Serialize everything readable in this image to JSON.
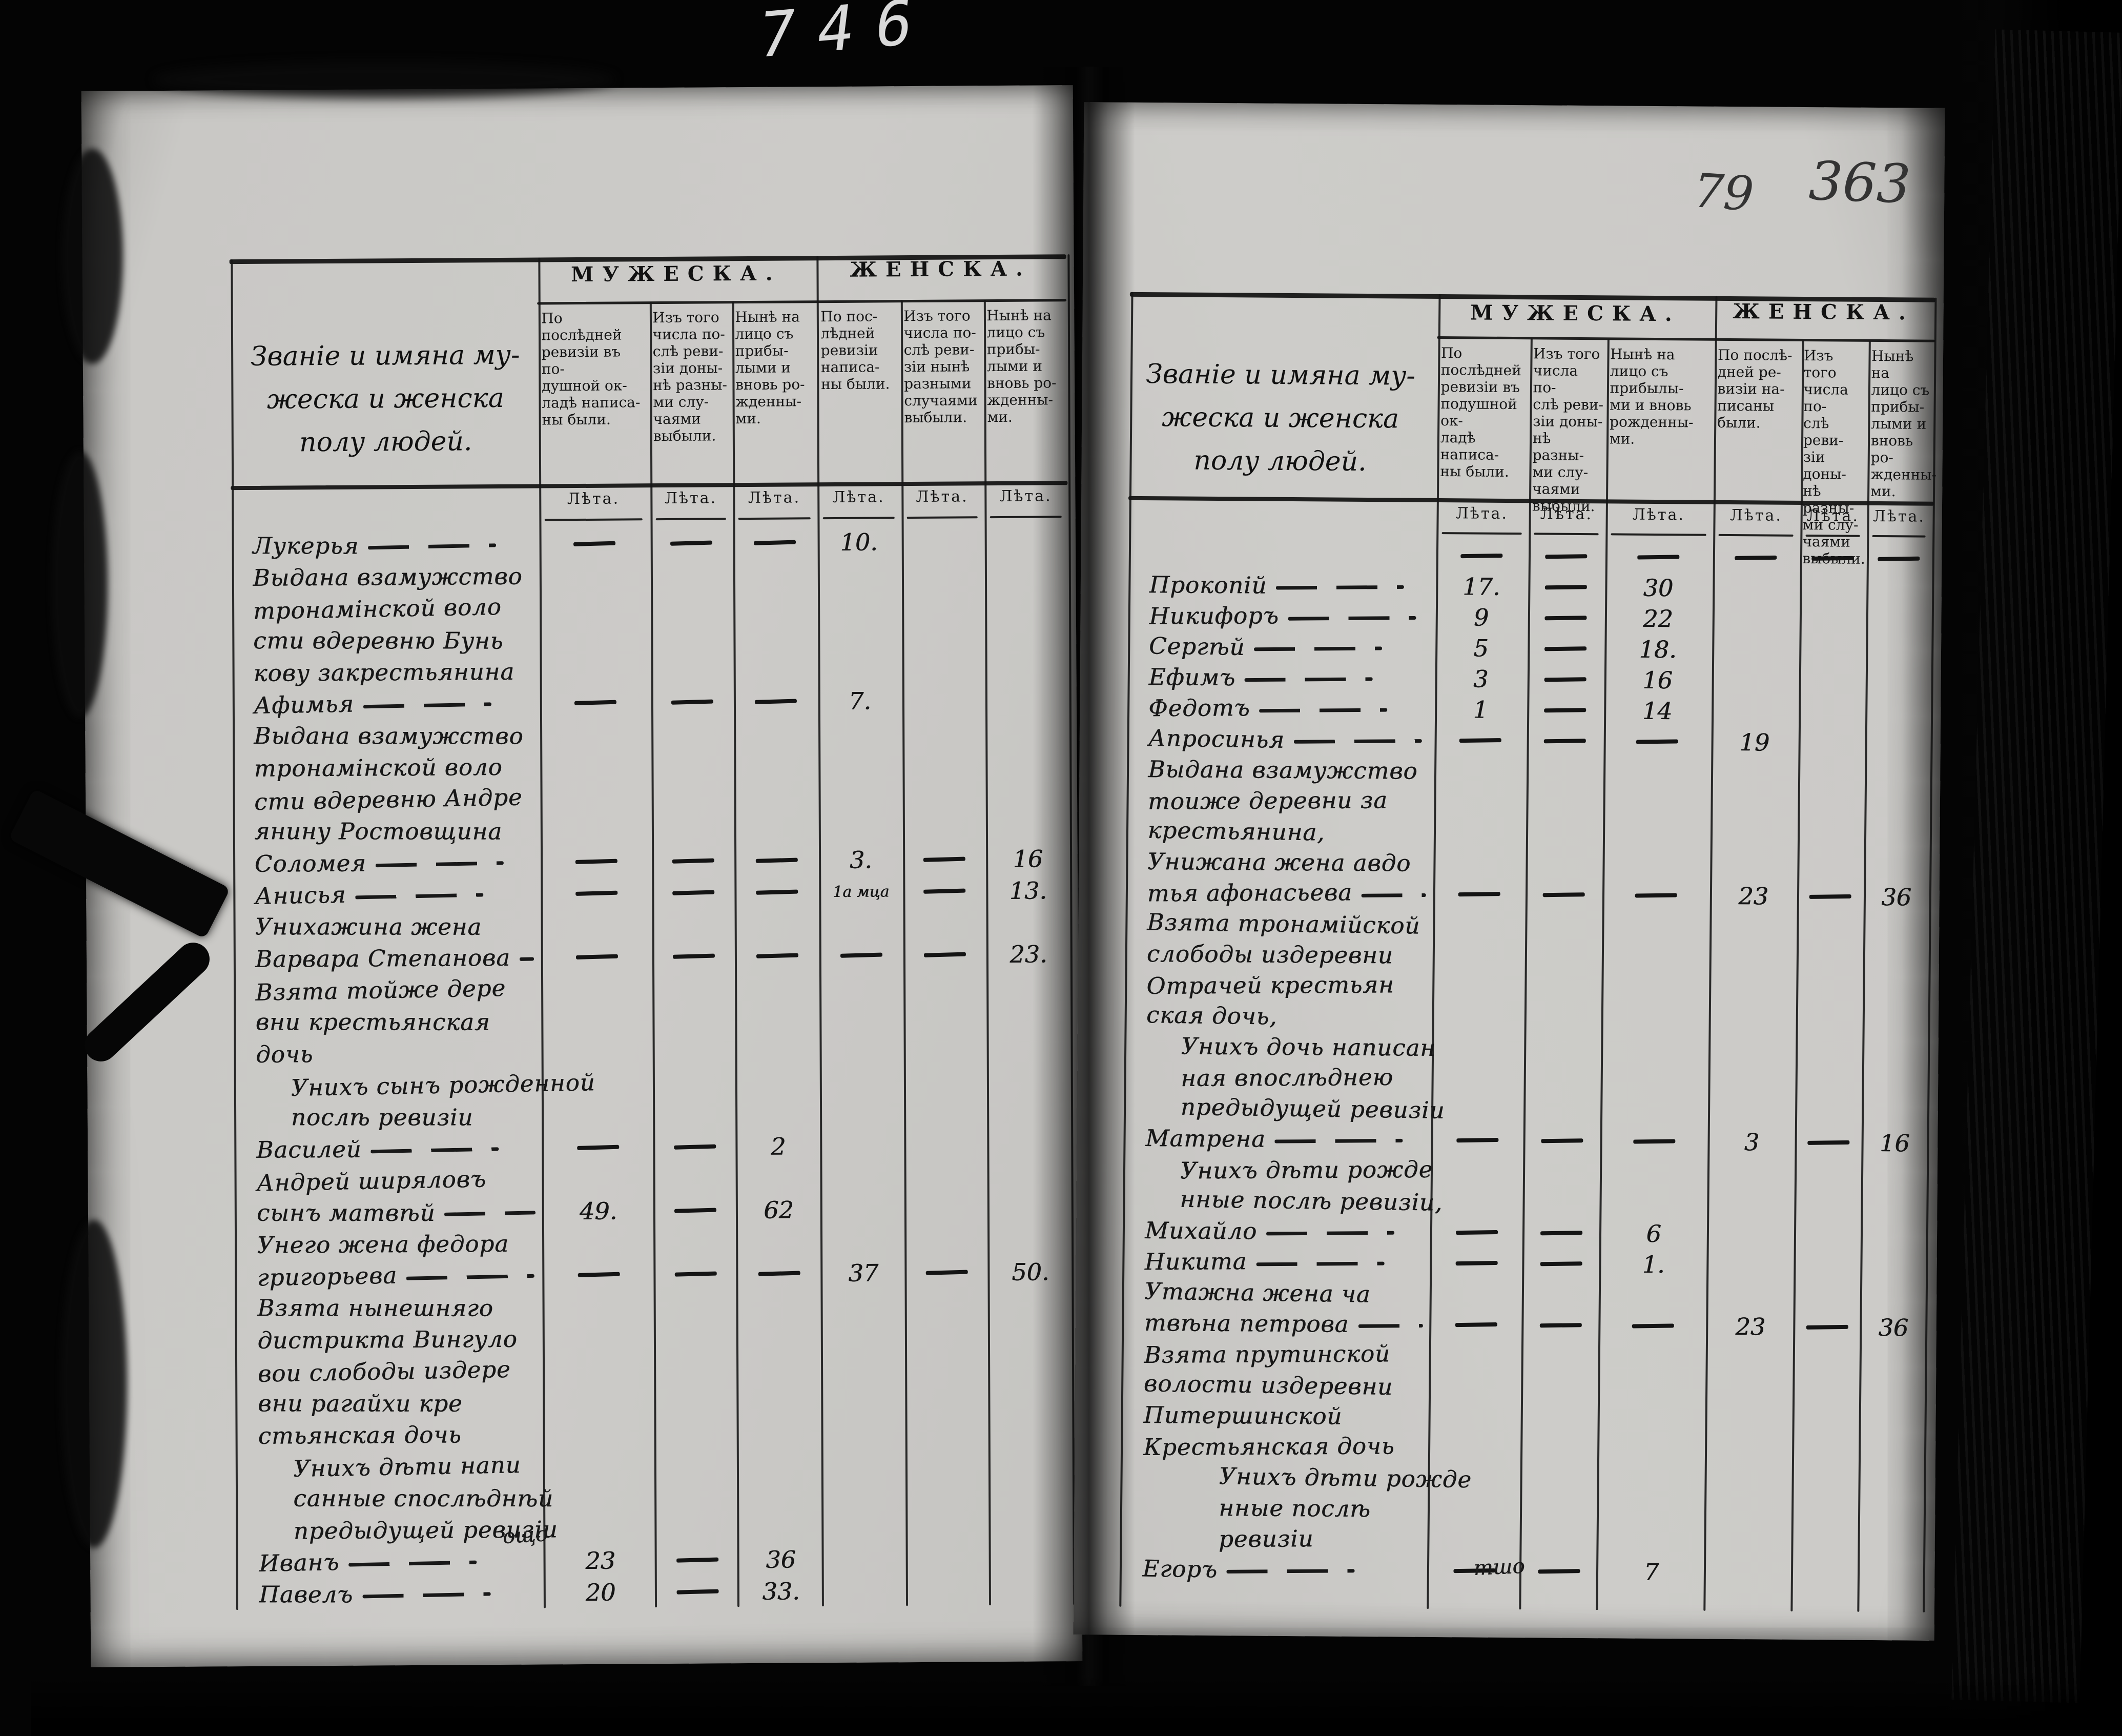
{
  "film_frame": "746",
  "folio": {
    "left_number": "79",
    "right_number": "363"
  },
  "catchwords": {
    "left": "ощо",
    "right": "тшо"
  },
  "left_page": {
    "name_header": [
      "Званіе и имяна му-",
      "жеска и женска",
      "полу  людей."
    ],
    "group_headers": {
      "male": "МУЖЕСКА.",
      "female": "ЖЕНСКА."
    },
    "age_label": "Лѣта.",
    "column_headers": {
      "m1": [
        "По послѣдней",
        "ревизіи въ по-",
        "душной ок-",
        "ладѣ написа-",
        "ны были."
      ],
      "m2": [
        "Изъ того",
        "числа по-",
        "слѣ реви-",
        "зіи доны-",
        "нѣ разны-",
        "ми слу-",
        "чаями",
        "выбыли."
      ],
      "m3": [
        "Нынѣ на",
        "лицо съ",
        "прибы-",
        "лыми и",
        "вновь ро-",
        "жденны-",
        "ми."
      ],
      "f1": [
        "По пос-",
        "лѣдней",
        "ревизіи",
        "написа-",
        "ны были."
      ],
      "f2": [
        "Изъ того",
        "числа по-",
        "слѣ реви-",
        "зіи нынѣ",
        "разными",
        "случаями",
        "выбыли."
      ],
      "f3": [
        "Нынѣ на",
        "лицо съ",
        "прибы-",
        "лыми и",
        "вновь ро-",
        "жденны-",
        "ми."
      ]
    },
    "rows": [
      {
        "text": "Лукерья",
        "type": "entry",
        "dashes": true,
        "cols": [
          "—",
          "—",
          "—",
          "10.",
          "",
          ""
        ]
      },
      {
        "text": "Выдана взамужство",
        "type": "note",
        "cols": [
          "",
          "",
          "",
          "",
          "",
          ""
        ]
      },
      {
        "text": "тронамінской воло",
        "type": "note",
        "cols": [
          "",
          "",
          "",
          "",
          "",
          ""
        ]
      },
      {
        "text": "сти вдеревню Бунь",
        "type": "note",
        "cols": [
          "",
          "",
          "",
          "",
          "",
          ""
        ]
      },
      {
        "text": "кову закрестьянина",
        "type": "note",
        "cols": [
          "",
          "",
          "",
          "",
          "",
          ""
        ]
      },
      {
        "text": "Афимья",
        "type": "entry",
        "dashes": true,
        "cols": [
          "—",
          "—",
          "—",
          "7.",
          "",
          ""
        ]
      },
      {
        "text": "Выдана взамужство",
        "type": "note",
        "cols": [
          "",
          "",
          "",
          "",
          "",
          ""
        ]
      },
      {
        "text": "тронамінской воло",
        "type": "note",
        "cols": [
          "",
          "",
          "",
          "",
          "",
          ""
        ]
      },
      {
        "text": "сти вдеревню Андре",
        "type": "note",
        "cols": [
          "",
          "",
          "",
          "",
          "",
          ""
        ]
      },
      {
        "text": "янину Ростовщина",
        "type": "note",
        "cols": [
          "",
          "",
          "",
          "",
          "",
          ""
        ]
      },
      {
        "text": "Соломея",
        "type": "entry",
        "dashes": true,
        "cols": [
          "—",
          "—",
          "—",
          "3.",
          "—",
          "16"
        ]
      },
      {
        "text": "Анисья",
        "type": "entry",
        "dashes": true,
        "cols": [
          "—",
          "—",
          "—",
          "1а мца",
          "—",
          "13."
        ]
      },
      {
        "text": "Унихажина жена",
        "type": "note",
        "cols": [
          "",
          "",
          "",
          "",
          "",
          ""
        ]
      },
      {
        "text": "Варвара Степанова",
        "type": "entry",
        "dashes": true,
        "cols": [
          "—",
          "—",
          "—",
          "—",
          "—",
          "23."
        ]
      },
      {
        "text": "Взята тойже дере",
        "type": "note",
        "cols": [
          "",
          "",
          "",
          "",
          "",
          ""
        ]
      },
      {
        "text": "вни крестьянская",
        "type": "note",
        "cols": [
          "",
          "",
          "",
          "",
          "",
          ""
        ]
      },
      {
        "text": "дочь",
        "type": "note",
        "cols": [
          "",
          "",
          "",
          "",
          "",
          ""
        ]
      },
      {
        "text": "Унихъ сынъ рожденной",
        "type": "note",
        "ind": 1,
        "cols": [
          "",
          "",
          "",
          "",
          "",
          ""
        ]
      },
      {
        "text": "послѣ ревизіи",
        "type": "note",
        "ind": 1,
        "cols": [
          "",
          "",
          "",
          "",
          "",
          ""
        ]
      },
      {
        "text": "Василей",
        "type": "entry",
        "dashes": true,
        "cols": [
          "—",
          "—",
          "2",
          "",
          "",
          ""
        ]
      },
      {
        "text": "Андрей ширяловъ",
        "type": "note",
        "cols": [
          "",
          "",
          "",
          "",
          "",
          ""
        ]
      },
      {
        "text": "сынъ матвѣй",
        "type": "entry",
        "dashes": true,
        "cols": [
          "49.",
          "—",
          "62",
          "",
          "",
          ""
        ]
      },
      {
        "text": "Унего жена федора",
        "type": "note",
        "cols": [
          "",
          "",
          "",
          "",
          "",
          ""
        ]
      },
      {
        "text": "григорьева",
        "type": "entry",
        "dashes": true,
        "cols": [
          "—",
          "—",
          "—",
          "37",
          "—",
          "50."
        ]
      },
      {
        "text": "Взята нынешняго",
        "type": "note",
        "cols": [
          "",
          "",
          "",
          "",
          "",
          ""
        ]
      },
      {
        "text": "дистрикта Вингуло",
        "type": "note",
        "cols": [
          "",
          "",
          "",
          "",
          "",
          ""
        ]
      },
      {
        "text": "вои слободы издере",
        "type": "note",
        "cols": [
          "",
          "",
          "",
          "",
          "",
          ""
        ]
      },
      {
        "text": "вни рагайхи кре",
        "type": "note",
        "cols": [
          "",
          "",
          "",
          "",
          "",
          ""
        ]
      },
      {
        "text": "стьянская дочь",
        "type": "note",
        "cols": [
          "",
          "",
          "",
          "",
          "",
          ""
        ]
      },
      {
        "text": "Унихъ дѣти напи",
        "type": "note",
        "ind": 1,
        "cols": [
          "",
          "",
          "",
          "",
          "",
          ""
        ]
      },
      {
        "text": "санные спослѣднѣй",
        "type": "note",
        "ind": 1,
        "cols": [
          "",
          "",
          "",
          "",
          "",
          ""
        ]
      },
      {
        "text": "предыдущей ревизіи",
        "type": "note",
        "ind": 1,
        "cols": [
          "",
          "",
          "",
          "",
          "",
          ""
        ]
      },
      {
        "text": "Иванъ",
        "type": "entry",
        "dashes": true,
        "cols": [
          "23",
          "—",
          "36",
          "",
          "",
          ""
        ]
      },
      {
        "text": "Павелъ",
        "type": "entry",
        "dashes": true,
        "cols": [
          "20",
          "—",
          "33.",
          "",
          "",
          ""
        ]
      }
    ]
  },
  "right_page": {
    "name_header": [
      "Званіе и имяна му-",
      "жеска и женска",
      "полу  людей."
    ],
    "group_headers": {
      "male": "МУЖЕСКА.",
      "female": "ЖЕНСКА."
    },
    "age_label": "Лѣта.",
    "column_headers": {
      "m1": [
        "По послѣдней",
        "ревизіи въ",
        "подушной ок-",
        "ладѣ написа-",
        "ны были."
      ],
      "m2": [
        "Изъ того",
        "числа по-",
        "слѣ реви-",
        "зіи доны-",
        "нѣ разны-",
        "ми слу-",
        "чаями",
        "выбыли."
      ],
      "m3": [
        "Нынѣ на",
        "лицо съ",
        "прибылы-",
        "ми и вновь",
        "рожденны-",
        "ми."
      ],
      "f1": [
        "По послѣ-",
        "дней ре-",
        "визіи на-",
        "писаны",
        "были."
      ],
      "f2": [
        "Изъ того",
        "числа по-",
        "слѣ реви-",
        "зіи доны-",
        "нѣ разны-",
        "ми слу-",
        "чаями",
        "выбыли."
      ],
      "f3": [
        "Нынѣ на",
        "лицо съ",
        "прибы-",
        "лыми и",
        "вновь ро-",
        "жденны-",
        "ми."
      ]
    },
    "rows": [
      {
        "text": "",
        "type": "entry",
        "cols": [
          "—",
          "—",
          "—",
          "—",
          "—",
          "—"
        ]
      },
      {
        "text": "Прокопій",
        "type": "entry",
        "dashes": true,
        "cols": [
          "17.",
          "—",
          "30",
          "",
          "",
          ""
        ]
      },
      {
        "text": "Никифоръ",
        "type": "entry",
        "dashes": true,
        "cols": [
          "9",
          "—",
          "22",
          "",
          "",
          ""
        ]
      },
      {
        "text": "Сергѣй",
        "type": "entry",
        "dashes": true,
        "cols": [
          "5",
          "—",
          "18.",
          "",
          "",
          ""
        ]
      },
      {
        "text": "Ефимъ",
        "type": "entry",
        "dashes": true,
        "cols": [
          "3",
          "—",
          "16",
          "",
          "",
          ""
        ]
      },
      {
        "text": "Федотъ",
        "type": "entry",
        "dashes": true,
        "cols": [
          "1",
          "—",
          "14",
          "",
          "",
          ""
        ]
      },
      {
        "text": "Апросинья",
        "type": "entry",
        "dashes": true,
        "cols": [
          "—",
          "—",
          "—",
          "19",
          "",
          ""
        ]
      },
      {
        "text": "Выдана взамужство",
        "type": "note",
        "cols": [
          "",
          "",
          "",
          "",
          "",
          ""
        ]
      },
      {
        "text": "тоиже деревни за",
        "type": "note",
        "cols": [
          "",
          "",
          "",
          "",
          "",
          ""
        ]
      },
      {
        "text": "крестьянина,",
        "type": "note",
        "cols": [
          "",
          "",
          "",
          "",
          "",
          ""
        ]
      },
      {
        "text": "Унижана жена авдо",
        "type": "note",
        "cols": [
          "",
          "",
          "",
          "",
          "",
          ""
        ]
      },
      {
        "text": "тья афонасьева",
        "type": "entry",
        "dashes": true,
        "cols": [
          "—",
          "—",
          "—",
          "23",
          "—",
          "36"
        ]
      },
      {
        "text": "Взята тронамійской",
        "type": "note",
        "cols": [
          "",
          "",
          "",
          "",
          "",
          ""
        ]
      },
      {
        "text": "слободы издеревни",
        "type": "note",
        "cols": [
          "",
          "",
          "",
          "",
          "",
          ""
        ]
      },
      {
        "text": "Отрачей крестьян",
        "type": "note",
        "cols": [
          "",
          "",
          "",
          "",
          "",
          ""
        ]
      },
      {
        "text": "ская дочь,",
        "type": "note",
        "cols": [
          "",
          "",
          "",
          "",
          "",
          ""
        ]
      },
      {
        "text": "Унихъ дочь написан",
        "type": "note",
        "ind": 1,
        "cols": [
          "",
          "",
          "",
          "",
          "",
          ""
        ]
      },
      {
        "text": "ная впослѣднею",
        "type": "note",
        "ind": 1,
        "cols": [
          "",
          "",
          "",
          "",
          "",
          ""
        ]
      },
      {
        "text": "предыдущей ревизіи",
        "type": "note",
        "ind": 1,
        "cols": [
          "",
          "",
          "",
          "",
          "",
          ""
        ]
      },
      {
        "text": "Матрена",
        "type": "entry",
        "dashes": true,
        "cols": [
          "—",
          "—",
          "—",
          "3",
          "—",
          "16"
        ]
      },
      {
        "text": "Унихъ дѣти рожде",
        "type": "note",
        "ind": 1,
        "cols": [
          "",
          "",
          "",
          "",
          "",
          ""
        ]
      },
      {
        "text": "нные послѣ ревизіи,",
        "type": "note",
        "ind": 1,
        "cols": [
          "",
          "",
          "",
          "",
          "",
          ""
        ]
      },
      {
        "text": "Михайло",
        "type": "entry",
        "dashes": true,
        "cols": [
          "—",
          "—",
          "6",
          "",
          "",
          ""
        ]
      },
      {
        "text": "Никита",
        "type": "entry",
        "dashes": true,
        "cols": [
          "—",
          "—",
          "1.",
          "",
          "",
          ""
        ]
      },
      {
        "text": "Утажна жена ча",
        "type": "note",
        "cols": [
          "",
          "",
          "",
          "",
          "",
          ""
        ]
      },
      {
        "text": "твѣна петрова",
        "type": "entry",
        "dashes": true,
        "cols": [
          "—",
          "—",
          "—",
          "23",
          "—",
          "36"
        ]
      },
      {
        "text": "Взята прутинской",
        "type": "note",
        "cols": [
          "",
          "",
          "",
          "",
          "",
          ""
        ]
      },
      {
        "text": "волости издеревни",
        "type": "note",
        "cols": [
          "",
          "",
          "",
          "",
          "",
          ""
        ]
      },
      {
        "text": "Питершинской",
        "type": "note",
        "cols": [
          "",
          "",
          "",
          "",
          "",
          ""
        ]
      },
      {
        "text": "Крестьянская дочь",
        "type": "note",
        "cols": [
          "",
          "",
          "",
          "",
          "",
          ""
        ]
      },
      {
        "text": "Унихъ дѣти рожде",
        "type": "note",
        "ind": 2,
        "cols": [
          "",
          "",
          "",
          "",
          "",
          ""
        ]
      },
      {
        "text": "нные послѣ",
        "type": "note",
        "ind": 2,
        "cols": [
          "",
          "",
          "",
          "",
          "",
          ""
        ]
      },
      {
        "text": "ревизіи",
        "type": "note",
        "ind": 2,
        "cols": [
          "",
          "",
          "",
          "",
          "",
          ""
        ]
      },
      {
        "text": "Егоръ",
        "type": "entry",
        "dashes": true,
        "cols": [
          "—",
          "—",
          "7",
          "",
          "",
          ""
        ]
      }
    ]
  }
}
